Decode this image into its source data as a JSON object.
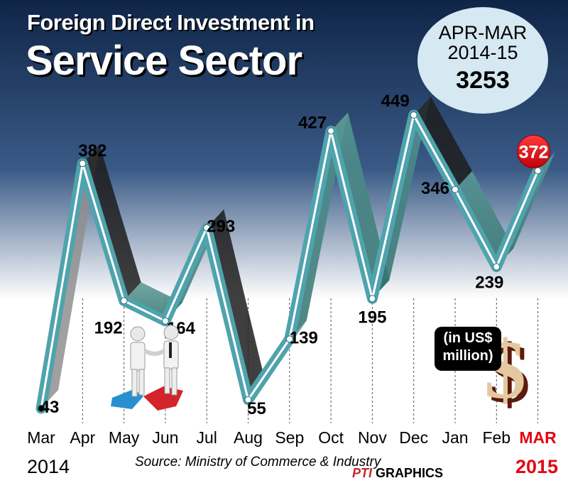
{
  "title": {
    "line1": "Foreign Direct Investment in",
    "line2": "Service Sector"
  },
  "badge": {
    "period": "APR-MAR 2014-15",
    "period_line1": "APR-MAR",
    "period_line2": "2014-15",
    "total": "3253"
  },
  "unit": {
    "line1": "(in US$",
    "line2": "million)"
  },
  "source": "Source: Ministry of Commerce & Industry",
  "credit": {
    "pti": "PTI",
    "graphics": "GRAPHICS"
  },
  "years": {
    "start": "2014",
    "end": "2015"
  },
  "colors": {
    "background_top": "#0f2548",
    "background_mid": "#3a5a86",
    "line": "#4fa3ad",
    "line_inner": "#ffffff",
    "highlight": "#e30613",
    "badge": "#d6e8f2"
  },
  "icons": [
    "handshake-puzzle-illustration",
    "dollar-sign-icon"
  ],
  "chart_data": {
    "type": "line",
    "categories": [
      "Mar",
      "Apr",
      "May",
      "Jun",
      "Jul",
      "Aug",
      "Sep",
      "Oct",
      "Nov",
      "Dec",
      "Jan",
      "Feb",
      "MAR"
    ],
    "values": [
      43,
      382,
      192,
      164,
      293,
      55,
      139,
      427,
      195,
      449,
      346,
      239,
      372
    ],
    "highlighted_point": "MAR",
    "unit": "in US$ million",
    "title": "Foreign Direct Investment in Service Sector",
    "xlabel": "",
    "ylabel": "",
    "grid": "vertical dashed lines",
    "legend": "none"
  }
}
